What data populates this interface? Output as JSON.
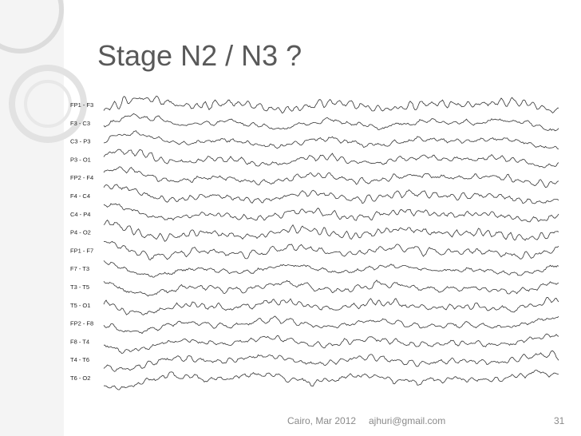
{
  "header": {
    "title": "Stage N2 / N3 ?"
  },
  "eeg": {
    "channels": [
      "FP1 - F3",
      "F3 - C3",
      "C3 - P3",
      "P3 - O1",
      "FP2 - F4",
      "F4 - C4",
      "C4 - P4",
      "P4 - O2",
      "FP1 - F7",
      "F7 - T3",
      "T3 - T5",
      "T5 - O1",
      "FP2 - F8",
      "F8 - T4",
      "T4 - T6",
      "T6 - O2"
    ]
  },
  "footer": {
    "date": "Cairo, Mar 2012",
    "email": "ajhuri@gmail.com",
    "page": "31"
  }
}
